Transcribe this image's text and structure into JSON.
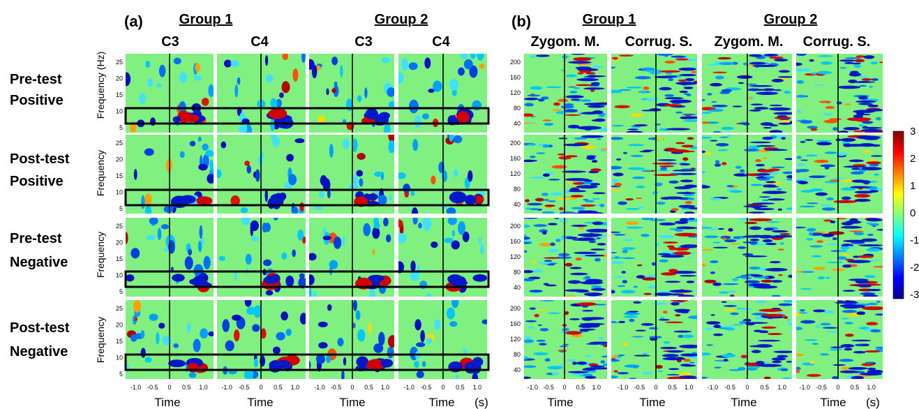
{
  "panel_a": {
    "letter": "(a)",
    "groups": [
      "Group 1",
      "Group 2"
    ],
    "columns": [
      "C3",
      "C4",
      "C3",
      "C4"
    ],
    "row_labels": [
      [
        "Pre-test",
        "Positive"
      ],
      [
        "Post-test",
        "Positive"
      ],
      [
        "Pre-test",
        "Negative"
      ],
      [
        "Post-test",
        "Negative"
      ]
    ],
    "y_axis_label_top": "Frequency (Hz)",
    "y_axis_label": "Frequency",
    "y_ticks": [
      "25",
      "20",
      "15",
      "10",
      "5"
    ],
    "x_ticks": [
      "-1.0",
      "-0.5",
      "0",
      "0.5",
      "1.0"
    ],
    "x_label": "Time",
    "unit": "(s)"
  },
  "panel_b": {
    "letter": "(b)",
    "groups": [
      "Group 1",
      "Group 2"
    ],
    "columns": [
      "Zygom. M.",
      "Corrug. S.",
      "Zygom. M.",
      "Corrug. S."
    ],
    "y_ticks": [
      "200",
      "160",
      "120",
      "80",
      "40"
    ],
    "x_ticks": [
      "-1.0",
      "-0.5",
      "0",
      "0.5",
      "1.0"
    ],
    "x_label": "Time",
    "unit": "(s)"
  },
  "colorbar": {
    "ticks": [
      "3",
      "2",
      "1",
      "0",
      "-1",
      "-2",
      "-3"
    ],
    "range": [
      -3,
      3
    ]
  },
  "colors": {
    "background": "#80f080",
    "neg_strong": "#0000c0",
    "pos_strong": "#c00000"
  }
}
